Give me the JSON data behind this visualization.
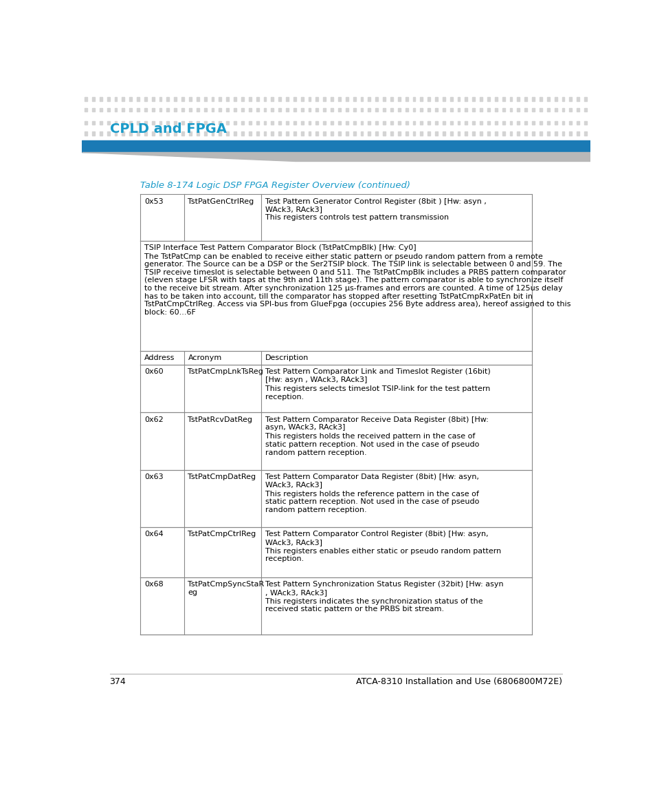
{
  "page_title": "CPLD and FPGA",
  "title_color": "#1a9bc9",
  "table_caption": "Table 8-174 Logic DSP FPGA Register Overview (continued)",
  "caption_color": "#1a9bc9",
  "page_number": "374",
  "footer_text": "ATCA-8310 Installation and Use (6806800M72E)",
  "intro_row_line1": "TSIP Interface Test Pattern Comparator Block (TstPatCmpBlk) [Hw: Cy0]",
  "intro_row_body": "The TstPatCmp can be enabled to receive either static pattern or pseudo random pattern from a remote generator. The Source can be a DSP or the Ser2TSIP block. The TSIP link is selectable between 0 and 59. The TSIP receive timeslot is selectable between 0 and 511. The TstPatCmpBlk includes a PRBS pattern comparator (eleven stage LFSR with taps at the 9th and 11th stage). The pattern comparator is able to synchronize itself to the receive bit stream. After synchronization 125 µs-frames and errors are counted. A time of 125us delay has to be taken into account, till the comparator has stopped after resetting TstPatCmpRxPatEn bit in TstPatCmpCtrlReg. Access via SPI-bus from GlueFpga (occupies 256 Byte address area), hereof assigned to this block: 60...6F",
  "header_row": [
    "Address",
    "Acronym",
    "Description"
  ],
  "rows": [
    {
      "address": "0x53",
      "acronym": "TstPatGenCtrlReg",
      "desc_line1": "Test Pattern Generator Control Register (8bit ) [Hw: asyn ,",
      "desc_line2": "WAck3, RAck3]",
      "desc_line3": "",
      "desc_line4": "This registers controls test pattern transmission"
    },
    {
      "address": "0x60",
      "acronym": "TstPatCmpLnkTsReg",
      "desc_line1": "Test Pattern Comparator Link and Timeslot Register (16bit)",
      "desc_line2": "[Hw: asyn , WAck3, RAck3]",
      "desc_line3": "",
      "desc_line4": "This registers selects timeslot TSIP-link for the test pattern reception."
    },
    {
      "address": "0x62",
      "acronym": "TstPatRcvDatReg",
      "desc_line1": "Test Pattern Comparator Receive Data Register (8bit) [Hw:",
      "desc_line2": "asyn, WAck3, RAck3]",
      "desc_line3": "",
      "desc_line4": "This registers holds the received pattern in the case of static pattern reception. Not used in the case of pseudo random pattern reception."
    },
    {
      "address": "0x63",
      "acronym": "TstPatCmpDatReg",
      "desc_line1": "Test Pattern Comparator Data Register (8bit) [Hw: asyn,",
      "desc_line2": "WAck3, RAck3]",
      "desc_line3": "",
      "desc_line4": "This registers holds the reference pattern in the case of static pattern reception. Not used in the case of pseudo random pattern reception."
    },
    {
      "address": "0x64",
      "acronym": "TstPatCmpCtrlReg",
      "desc_line1": "Test Pattern Comparator Control Register (8bit) [Hw: asyn,",
      "desc_line2": "WAck3, RAck3]",
      "desc_line3": "",
      "desc_line4": "This registers enables either static or pseudo random pattern reception."
    },
    {
      "address": "0x68",
      "acronym": "TstPatCmpSyncStaR\neg",
      "desc_line1": "Test Pattern Synchronization Status Register (32bit) [Hw: asyn",
      "desc_line2": ", WAck3, RAck3]",
      "desc_line3": "",
      "desc_line4": "This registers indicates the synchronization status of the received static pattern or the PRBS bit stream."
    }
  ],
  "bg_color": "#ffffff",
  "dot_color": "#d4d4d4",
  "text_color": "#000000",
  "border_color": "#888888",
  "blue_bar_color": "#1a7ab5",
  "gray_bar_color": "#aaaaaa"
}
